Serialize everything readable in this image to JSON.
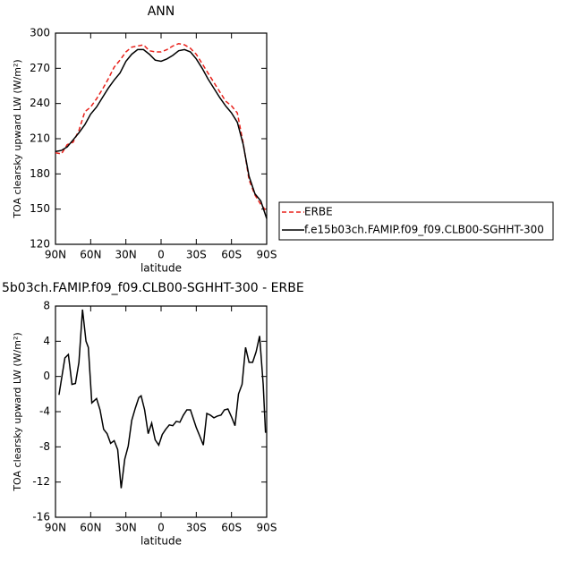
{
  "chart_data": [
    {
      "type": "line",
      "title": "ANN",
      "x_label": "latitude",
      "y_label": "TOA clearsky upward LW (W/m²)",
      "x": [
        90,
        85,
        80,
        75,
        70,
        65,
        60,
        55,
        50,
        45,
        40,
        35,
        30,
        25,
        20,
        15,
        10,
        5,
        0,
        -5,
        -10,
        -15,
        -20,
        -25,
        -30,
        -35,
        -40,
        -45,
        -50,
        -55,
        -60,
        -65,
        -70,
        -75,
        -80,
        -85,
        -90
      ],
      "series": [
        {
          "name": "ERBE",
          "color": "#e8201a",
          "line_style": "dashed",
          "values": [
            198,
            197,
            205,
            207,
            217,
            233,
            237,
            244,
            252,
            261,
            271,
            277,
            284,
            288,
            289,
            290,
            285,
            284,
            284,
            286,
            289,
            291,
            290,
            287,
            282,
            274,
            266,
            258,
            250,
            242,
            238,
            232,
            206,
            175,
            162,
            154,
            148
          ]
        },
        {
          "name": "f.e15b03ch.FAMIP.f09_f09.CLB00-SGHHT-300",
          "color": "#000000",
          "line_style": "solid",
          "values": [
            199,
            200,
            203,
            209,
            215,
            222,
            231,
            237,
            245,
            253,
            260,
            266,
            276,
            282,
            286,
            286,
            282,
            277,
            276,
            278,
            281,
            285,
            286,
            284,
            278,
            270,
            261,
            253,
            245,
            238,
            232,
            224,
            205,
            178,
            163,
            157,
            142
          ]
        }
      ],
      "xlim": [
        90,
        -90
      ],
      "xticks": [
        {
          "value": 90,
          "label": "90N"
        },
        {
          "value": 60,
          "label": "60N"
        },
        {
          "value": 30,
          "label": "30N"
        },
        0,
        {
          "value": -30,
          "label": "30S"
        },
        {
          "value": -60,
          "label": "60S"
        },
        {
          "value": -90,
          "label": "90S"
        }
      ],
      "ylim": [
        120,
        300
      ],
      "yticks": [
        120,
        150,
        180,
        210,
        240,
        270,
        300
      ],
      "legend": "right"
    },
    {
      "type": "line",
      "title": "5b03ch.FAMIP.f09_f09.CLB00-SGHHT-300 - ERBE",
      "x_label": "latitude",
      "y_label": "TOA clearsky upward LW (W/m²)",
      "x": [
        87,
        82,
        79,
        76,
        73,
        70,
        67,
        64,
        62,
        59,
        55,
        52,
        49,
        46,
        43,
        40,
        37,
        34,
        31,
        28,
        25,
        22,
        19,
        17,
        14,
        11,
        8,
        5,
        2,
        -1,
        -4,
        -7,
        -10,
        -13,
        -16,
        -19,
        -22,
        -25,
        -27,
        -30,
        -33,
        -36,
        -39,
        -42,
        -45,
        -48,
        -51,
        -54,
        -57,
        -60,
        -63,
        -66,
        -69,
        -72,
        -75,
        -78,
        -81,
        -84,
        -87,
        -89
      ],
      "series": [
        {
          "color": "#000000",
          "line_style": "solid",
          "values": [
            -2.1,
            2.1,
            2.5,
            -0.9,
            -0.8,
            1.6,
            7.6,
            4,
            3.3,
            -3,
            -2.5,
            -3.8,
            -6,
            -6.5,
            -7.6,
            -7.3,
            -8.3,
            -12.7,
            -9.4,
            -7.9,
            -5,
            -3.6,
            -2.4,
            -2.2,
            -3.8,
            -6.5,
            -5.3,
            -7.2,
            -7.8,
            -6.6,
            -6,
            -5.5,
            -5.6,
            -5.1,
            -5.2,
            -4.4,
            -3.8,
            -3.8,
            -4.6,
            -5.8,
            -6.8,
            -7.8,
            -4.2,
            -4.4,
            -4.7,
            -4.5,
            -4.4,
            -3.8,
            -3.7,
            -4.6,
            -5.6,
            -2,
            -0.9,
            3.3,
            1.6,
            1.6,
            2.8,
            4.6,
            -0.9,
            -6.4
          ]
        }
      ],
      "xlim": [
        90,
        -90
      ],
      "xticks": [
        {
          "value": 90,
          "label": "90N"
        },
        {
          "value": 60,
          "label": "60N"
        },
        {
          "value": 30,
          "label": "30N"
        },
        0,
        {
          "value": -30,
          "label": "30S"
        },
        {
          "value": -60,
          "label": "60S"
        },
        {
          "value": -90,
          "label": "90S"
        }
      ],
      "ylim": [
        -16,
        8
      ],
      "yticks": [
        -16,
        -12,
        -8,
        -4,
        0,
        4,
        8
      ]
    }
  ]
}
